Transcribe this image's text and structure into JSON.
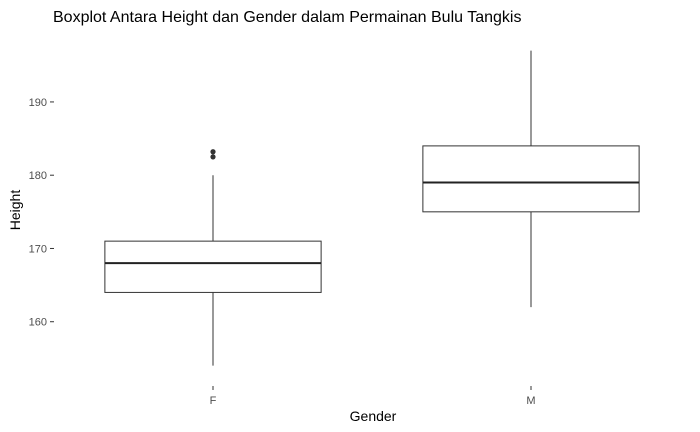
{
  "chart_data": {
    "type": "boxplot",
    "title": "Boxplot Antara Height dan Gender dalam Permainan Bulu Tangkis",
    "xlabel": "Gender",
    "ylabel": "Height",
    "categories": [
      "F",
      "M"
    ],
    "yticks": [
      160,
      170,
      180,
      190
    ],
    "ylim": [
      151.5,
      199
    ],
    "grid": false,
    "boxes": [
      {
        "category": "F",
        "min": 154,
        "q1": 164,
        "median": 168,
        "q3": 171,
        "max": 180,
        "outliers": [
          182.5,
          183.2
        ]
      },
      {
        "category": "M",
        "min": 162,
        "q1": 175,
        "median": 179,
        "q3": 184,
        "max": 197,
        "outliers": []
      }
    ]
  }
}
